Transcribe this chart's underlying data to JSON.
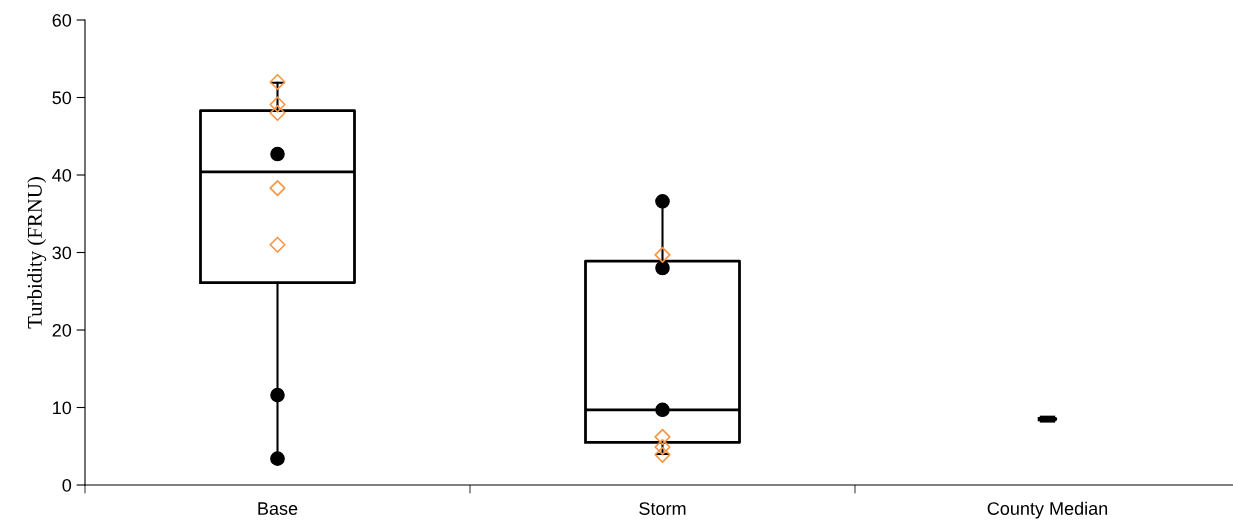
{
  "chart_data": {
    "type": "box",
    "ylabel": "Turbidity (FRNU)",
    "categories": [
      "Base",
      "Storm",
      "County Median"
    ],
    "ylim": [
      0,
      60
    ],
    "yticks": [
      0,
      10,
      20,
      30,
      40,
      50,
      60
    ],
    "grid": false,
    "series": [
      {
        "color": "#000000",
        "boxes": [
          {
            "low": 3.4,
            "q1": 26.1,
            "median": 40.4,
            "q3": 48.3,
            "high": 51.9
          },
          {
            "low": 4.0,
            "q1": 5.5,
            "median": 9.7,
            "q3": 28.9,
            "high": 36.6
          },
          {
            "low": 8.5,
            "q1": 8.5,
            "median": 8.5,
            "q3": 8.5,
            "high": 8.5
          }
        ]
      },
      {
        "type": "scatter",
        "marker": "circle",
        "color": "#000000",
        "x": [
          "Base",
          "Base",
          "Base",
          "Storm",
          "Storm",
          "Storm"
        ],
        "values": [
          42.7,
          11.6,
          3.4,
          36.6,
          28.0,
          9.7
        ]
      },
      {
        "type": "scatter",
        "marker": "diamond",
        "color": "#f79646",
        "x": [
          "Base",
          "Base",
          "Base",
          "Base",
          "Base",
          "Storm",
          "Storm",
          "Storm",
          "Storm"
        ],
        "values": [
          52.0,
          49.1,
          48.0,
          38.3,
          31.0,
          29.7,
          6.2,
          4.9,
          3.9
        ]
      }
    ]
  }
}
